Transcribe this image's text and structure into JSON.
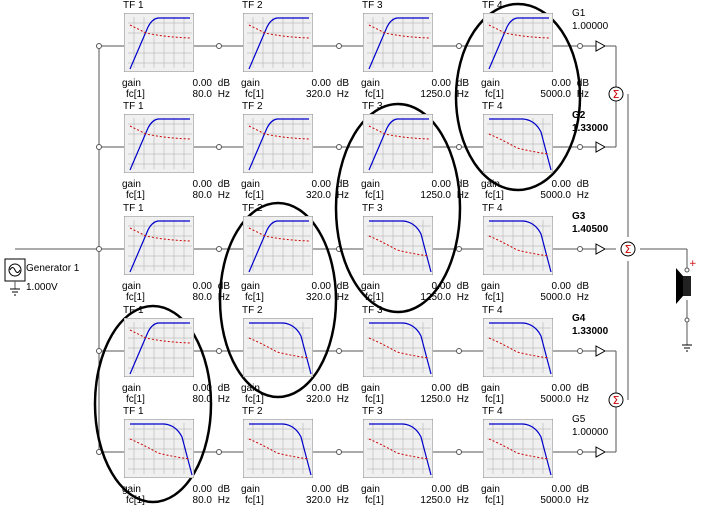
{
  "generator": {
    "name": "Generator 1",
    "voltage": "1.000V"
  },
  "gain_label": "gain",
  "fc_label": "fc[1]",
  "gain_unit": "dB",
  "fc_unit": "Hz",
  "columns": [
    {
      "title": "TF 1",
      "fc": "80.0"
    },
    {
      "title": "TF 2",
      "fc": "320.0"
    },
    {
      "title": "TF 3",
      "fc": "1250.0"
    },
    {
      "title": "TF 4",
      "fc": "5000.0"
    }
  ],
  "rows": [
    {
      "gain_name": "G1",
      "gain_value": "1.00000",
      "bold": false,
      "filters": [
        {
          "gain": "0.00",
          "type": "highpass"
        },
        {
          "gain": "0.00",
          "type": "highpass"
        },
        {
          "gain": "0.00",
          "type": "highpass"
        },
        {
          "gain": "0.00",
          "type": "highpass"
        }
      ]
    },
    {
      "gain_name": "G2",
      "gain_value": "1.33000",
      "bold": true,
      "filters": [
        {
          "gain": "0.00",
          "type": "highpass"
        },
        {
          "gain": "0.00",
          "type": "highpass"
        },
        {
          "gain": "0.00",
          "type": "highpass"
        },
        {
          "gain": "0.00",
          "type": "lowpass"
        }
      ]
    },
    {
      "gain_name": "G3",
      "gain_value": "1.40500",
      "bold": true,
      "filters": [
        {
          "gain": "0.00",
          "type": "highpass"
        },
        {
          "gain": "0.00",
          "type": "highpass"
        },
        {
          "gain": "0.00",
          "type": "lowpass"
        },
        {
          "gain": "0.00",
          "type": "lowpass"
        }
      ]
    },
    {
      "gain_name": "G4",
      "gain_value": "1.33000",
      "bold": true,
      "filters": [
        {
          "gain": "0.00",
          "type": "highpass"
        },
        {
          "gain": "0.00",
          "type": "lowpass"
        },
        {
          "gain": "0.00",
          "type": "lowpass"
        },
        {
          "gain": "0.00",
          "type": "lowpass"
        }
      ]
    },
    {
      "gain_name": "G5",
      "gain_value": "1.00000",
      "bold": false,
      "filters": [
        {
          "gain": "0.00",
          "type": "lowpass"
        },
        {
          "gain": "0.00",
          "type": "lowpass"
        },
        {
          "gain": "0.00",
          "type": "lowpass"
        },
        {
          "gain": "0.00",
          "type": "lowpass"
        }
      ]
    }
  ],
  "colors": {
    "wire": "#555555",
    "response": "#0000cc",
    "phase": "#cc0000",
    "grid": "#aaaaaa",
    "plot_bg": "#f0f0f0"
  },
  "summer_symbol": "Σ",
  "icons": [
    "sine-source-icon",
    "ground-icon",
    "triangle-amp-icon",
    "summer-icon",
    "speaker-icon"
  ]
}
